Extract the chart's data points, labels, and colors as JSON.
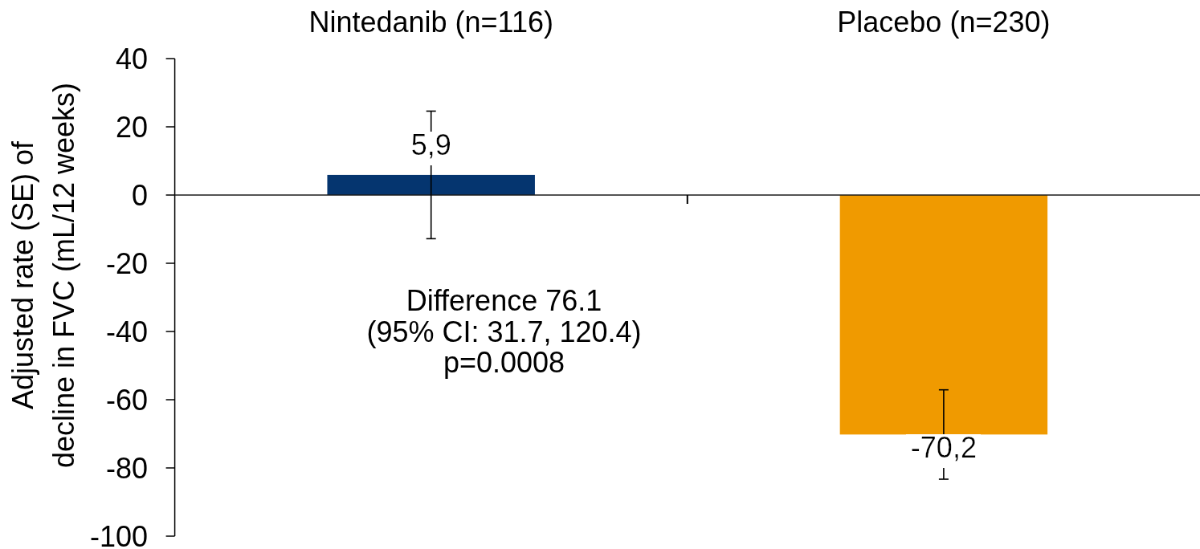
{
  "chart_data": {
    "type": "bar",
    "categories": [
      "Nintedanib (n=116)",
      "Placebo (n=230)"
    ],
    "values": [
      5.9,
      -70.2
    ],
    "colors": [
      "#05356f",
      "#f09a00"
    ],
    "errors": [
      18.7,
      13.1
    ],
    "value_labels": [
      "5,9",
      "-70,2"
    ],
    "ylabel": "Adjusted rate (SE) of\ndecline in FVC (mL/12 weeks)",
    "ylim": [
      -100,
      40
    ],
    "yticks": [
      -100,
      -80,
      -60,
      -40,
      -20,
      0,
      20,
      40
    ],
    "annotations": [
      "Difference 76.1\n(95% CI: 31.7, 120.4)\np=0.0008"
    ]
  }
}
